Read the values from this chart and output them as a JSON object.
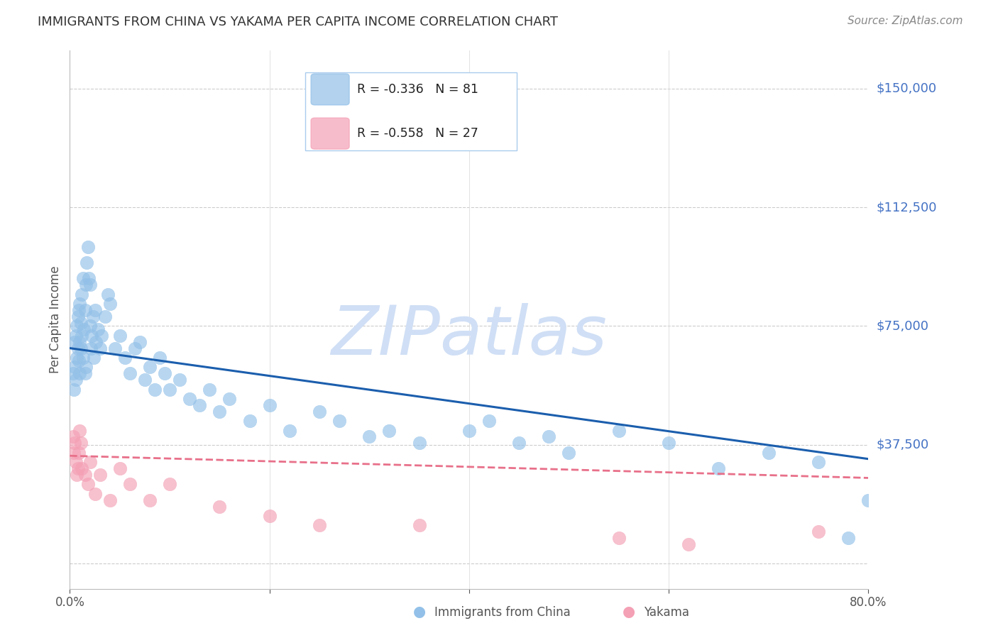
{
  "title": "IMMIGRANTS FROM CHINA VS YAKAMA PER CAPITA INCOME CORRELATION CHART",
  "source": "Source: ZipAtlas.com",
  "ylabel": "Per Capita Income",
  "xlim": [
    0.0,
    80.0
  ],
  "ylim": [
    -8000,
    162000
  ],
  "yticks": [
    0,
    37500,
    75000,
    112500,
    150000
  ],
  "ytick_labels": [
    "",
    "$37,500",
    "$75,000",
    "$112,500",
    "$150,000"
  ],
  "china_R": -0.336,
  "china_N": 81,
  "yakama_R": -0.558,
  "yakama_N": 27,
  "china_color": "#92C0E8",
  "yakama_color": "#F4A0B5",
  "china_line_color": "#1B5EAD",
  "yakama_line_color": "#E8708A",
  "watermark": "ZIPatlas",
  "watermark_color": "#D0DFF5",
  "title_color": "#333333",
  "ytick_color": "#4472C4",
  "background_color": "#FFFFFF",
  "china_x": [
    0.3,
    0.4,
    0.5,
    0.5,
    0.6,
    0.6,
    0.7,
    0.7,
    0.8,
    0.8,
    0.9,
    0.9,
    1.0,
    1.0,
    1.0,
    1.1,
    1.1,
    1.2,
    1.2,
    1.3,
    1.3,
    1.4,
    1.5,
    1.5,
    1.6,
    1.6,
    1.7,
    1.8,
    1.9,
    2.0,
    2.0,
    2.1,
    2.2,
    2.3,
    2.4,
    2.5,
    2.6,
    2.8,
    3.0,
    3.2,
    3.5,
    3.8,
    4.0,
    4.5,
    5.0,
    5.5,
    6.0,
    6.5,
    7.0,
    7.5,
    8.0,
    8.5,
    9.0,
    9.5,
    10.0,
    11.0,
    12.0,
    13.0,
    14.0,
    15.0,
    16.0,
    18.0,
    20.0,
    22.0,
    25.0,
    27.0,
    30.0,
    32.0,
    35.0,
    40.0,
    42.0,
    45.0,
    48.0,
    50.0,
    55.0,
    60.0,
    65.0,
    70.0,
    75.0,
    78.0,
    80.0
  ],
  "china_y": [
    60000,
    55000,
    62000,
    70000,
    58000,
    72000,
    65000,
    75000,
    68000,
    78000,
    64000,
    80000,
    60000,
    70000,
    82000,
    68000,
    76000,
    72000,
    85000,
    65000,
    90000,
    74000,
    60000,
    80000,
    62000,
    88000,
    95000,
    100000,
    90000,
    75000,
    88000,
    68000,
    72000,
    78000,
    65000,
    80000,
    70000,
    74000,
    68000,
    72000,
    78000,
    85000,
    82000,
    68000,
    72000,
    65000,
    60000,
    68000,
    70000,
    58000,
    62000,
    55000,
    65000,
    60000,
    55000,
    58000,
    52000,
    50000,
    55000,
    48000,
    52000,
    45000,
    50000,
    42000,
    48000,
    45000,
    40000,
    42000,
    38000,
    42000,
    45000,
    38000,
    40000,
    35000,
    42000,
    38000,
    30000,
    35000,
    32000,
    8000,
    20000
  ],
  "yakama_x": [
    0.3,
    0.4,
    0.5,
    0.6,
    0.7,
    0.8,
    0.9,
    1.0,
    1.1,
    1.2,
    1.5,
    1.8,
    2.0,
    2.5,
    3.0,
    4.0,
    5.0,
    6.0,
    8.0,
    10.0,
    15.0,
    20.0,
    25.0,
    35.0,
    55.0,
    62.0,
    75.0
  ],
  "yakama_y": [
    40000,
    35000,
    38000,
    32000,
    28000,
    30000,
    35000,
    42000,
    38000,
    30000,
    28000,
    25000,
    32000,
    22000,
    28000,
    20000,
    30000,
    25000,
    20000,
    25000,
    18000,
    15000,
    12000,
    12000,
    8000,
    6000,
    10000
  ]
}
